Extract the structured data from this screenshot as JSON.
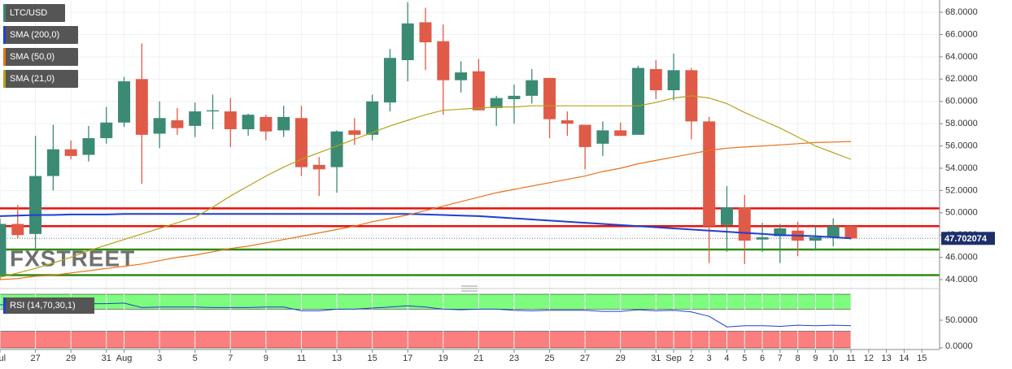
{
  "chart_data": [
    {
      "type": "candlestick",
      "symbol": "LTC/USD",
      "up_color": "#3b8a74",
      "down_color": "#e05a48",
      "x": [
        0,
        1,
        2,
        3,
        4,
        5,
        6,
        7,
        8,
        9,
        10,
        11,
        12,
        13,
        14,
        15,
        16,
        17,
        18,
        19,
        20,
        21,
        22,
        23,
        24,
        25,
        26,
        27,
        28,
        29,
        30,
        31,
        32,
        33,
        34,
        35,
        36,
        37,
        38,
        39,
        40,
        41,
        42,
        43,
        44,
        45,
        46,
        47,
        48
      ],
      "open": [
        44.5,
        49.0,
        48.1,
        53.3,
        55.7,
        55.2,
        56.7,
        58.1,
        62.0,
        57.1,
        58.3,
        57.8,
        59.1,
        59.1,
        57.5,
        58.6,
        57.4,
        58.5,
        54.3,
        54.1,
        57.4,
        57.0,
        59.9,
        63.7,
        67.1,
        65.4,
        61.9,
        62.7,
        59.4,
        60.2,
        60.5,
        62.1,
        58.3,
        57.9,
        56.2,
        57.4,
        57.0,
        62.9,
        61.0,
        62.8,
        58.2,
        48.9,
        50.5,
        47.6,
        47.9,
        48.4,
        47.5,
        47.8,
        48.8
      ],
      "high": [
        49.5,
        50.7,
        56.9,
        57.9,
        56.5,
        57.8,
        59.5,
        62.2,
        65.2,
        60.0,
        59.4,
        59.9,
        60.6,
        60.3,
        58.9,
        58.8,
        59.6,
        59.6,
        55.0,
        57.4,
        58.5,
        60.6,
        64.7,
        68.9,
        68.4,
        66.9,
        63.6,
        63.8,
        60.5,
        61.5,
        62.9,
        62.1,
        59.1,
        57.8,
        58.2,
        58.1,
        63.2,
        63.7,
        64.3,
        63.0,
        58.6,
        52.4,
        51.6,
        49.1,
        49.0,
        49.2,
        48.8,
        49.5,
        48.9
      ],
      "low": [
        44.0,
        47.7,
        46.8,
        52.0,
        54.8,
        54.6,
        56.2,
        57.7,
        52.6,
        55.8,
        57.0,
        56.8,
        57.5,
        55.9,
        56.9,
        56.5,
        56.8,
        53.3,
        51.5,
        51.8,
        56.1,
        56.5,
        59.1,
        61.8,
        62.8,
        58.8,
        60.8,
        59.2,
        57.8,
        58.0,
        59.8,
        56.7,
        56.9,
        53.9,
        55.1,
        57.0,
        57.0,
        60.2,
        60.1,
        56.6,
        45.5,
        46.5,
        45.4,
        46.5,
        45.5,
        46.1,
        46.6,
        47.0,
        47.6
      ],
      "close": [
        49.0,
        48.0,
        53.3,
        55.7,
        55.1,
        56.7,
        58.1,
        61.8,
        57.0,
        58.5,
        57.6,
        59.1,
        59.2,
        57.5,
        58.8,
        57.3,
        58.6,
        54.1,
        53.9,
        57.3,
        57.0,
        60.0,
        63.9,
        67.0,
        65.3,
        61.9,
        62.6,
        59.2,
        60.3,
        60.5,
        61.9,
        58.4,
        58.0,
        55.9,
        57.4,
        56.9,
        63.0,
        61.0,
        62.8,
        58.2,
        48.8,
        50.5,
        47.5,
        47.8,
        48.6,
        47.5,
        47.8,
        48.8,
        47.7
      ],
      "series": [
        {
          "name": "SMA (200,0)",
          "color": "#1f3fd1",
          "values": [
            49.7,
            49.75,
            49.8,
            49.8,
            49.85,
            49.85,
            49.85,
            49.9,
            49.9,
            49.9,
            49.9,
            49.9,
            49.9,
            49.9,
            49.9,
            49.9,
            49.9,
            49.9,
            49.9,
            49.9,
            49.9,
            49.9,
            49.9,
            49.9,
            49.85,
            49.8,
            49.75,
            49.7,
            49.6,
            49.5,
            49.4,
            49.3,
            49.2,
            49.1,
            49.0,
            48.9,
            48.8,
            48.7,
            48.6,
            48.5,
            48.4,
            48.3,
            48.2,
            48.1,
            48.0,
            47.95,
            47.9,
            47.8,
            47.7
          ]
        },
        {
          "name": "SMA (50,0)",
          "color": "#e8731a",
          "values": [
            44.0,
            44.1,
            44.3,
            44.4,
            44.6,
            44.8,
            45.0,
            45.2,
            45.4,
            45.7,
            46.0,
            46.2,
            46.5,
            46.8,
            47.0,
            47.3,
            47.6,
            47.9,
            48.2,
            48.5,
            48.8,
            49.2,
            49.5,
            49.8,
            50.2,
            50.6,
            51.0,
            51.4,
            51.8,
            52.1,
            52.4,
            52.7,
            53.0,
            53.3,
            53.7,
            54.0,
            54.4,
            54.7,
            55.0,
            55.3,
            55.6,
            55.8,
            55.9,
            56.0,
            56.1,
            56.2,
            56.3,
            56.35,
            56.4
          ]
        },
        {
          "name": "SMA (21,0)",
          "color": "#b5a21a",
          "values": [
            44.2,
            44.6,
            45.0,
            45.5,
            46.0,
            46.6,
            47.1,
            47.6,
            48.1,
            48.6,
            49.1,
            49.6,
            50.5,
            51.5,
            52.4,
            53.3,
            54.1,
            54.8,
            55.4,
            56.0,
            56.6,
            57.2,
            57.8,
            58.3,
            58.8,
            59.2,
            59.3,
            59.4,
            59.5,
            59.5,
            59.6,
            59.6,
            59.6,
            59.6,
            59.6,
            59.6,
            59.6,
            59.9,
            60.3,
            60.5,
            60.3,
            59.8,
            59.0,
            58.3,
            57.6,
            56.8,
            56.0,
            55.4,
            54.8
          ]
        }
      ],
      "levels": [
        {
          "value": 50.4,
          "color": "#e8120c"
        },
        {
          "value": 48.8,
          "color": "#e8120c"
        },
        {
          "value": 46.7,
          "color": "#2f8a12"
        },
        {
          "value": 44.4,
          "color": "#2f8a12"
        }
      ],
      "last_price": 47.702074,
      "watermark": "FXSTREET",
      "xlim": [
        0,
        53
      ],
      "ylim": [
        43.2,
        69.1
      ],
      "yticks": [
        {
          "value": 44,
          "label": "44.0000"
        },
        {
          "value": 46,
          "label": "46.0000"
        },
        {
          "value": 48,
          "label": "48.0000"
        },
        {
          "value": 50,
          "label": "50.0000"
        },
        {
          "value": 52,
          "label": "52.0000"
        },
        {
          "value": 54,
          "label": "54.0000"
        },
        {
          "value": 56,
          "label": "56.0000"
        },
        {
          "value": 58,
          "label": "58.0000"
        },
        {
          "value": 60,
          "label": "60.0000"
        },
        {
          "value": 62,
          "label": "62.0000"
        },
        {
          "value": 64,
          "label": "64.0000"
        },
        {
          "value": 66,
          "label": "66.0000"
        },
        {
          "value": 68,
          "label": "68.0000"
        }
      ],
      "grid": true
    },
    {
      "type": "line",
      "x": [
        0,
        1,
        2,
        3,
        4,
        5,
        6,
        7,
        8,
        9,
        10,
        11,
        12,
        13,
        14,
        15,
        16,
        17,
        18,
        19,
        20,
        21,
        22,
        23,
        24,
        25,
        26,
        27,
        28,
        29,
        30,
        31,
        32,
        33,
        34,
        35,
        36,
        37,
        38,
        39,
        40,
        41,
        42,
        43,
        44,
        45,
        46,
        47,
        48
      ],
      "series": [
        {
          "name": "RSI (14,70,30,1)",
          "color": "#1f3fd1",
          "values": [
            78,
            79,
            80,
            80,
            80,
            80,
            80,
            81,
            73,
            74,
            74,
            74,
            73,
            73,
            73,
            74,
            74,
            67,
            67,
            70,
            70,
            72,
            74,
            76,
            74,
            70,
            69,
            70,
            70,
            68,
            67,
            68,
            68,
            68,
            66,
            66,
            69,
            67,
            68,
            65,
            57,
            38,
            40,
            40,
            39,
            41,
            40,
            41,
            40
          ]
        }
      ],
      "bands": [
        {
          "from": 70,
          "to": 100,
          "color": "#7dfc7d"
        },
        {
          "from": 0,
          "to": 30,
          "color": "#fc7f7f"
        }
      ],
      "xlim": [
        0,
        53
      ],
      "ylim": [
        0,
        100
      ],
      "yticks": [
        {
          "value": 0,
          "label": "0.0000"
        },
        {
          "value": 50,
          "label": "50.0000"
        }
      ],
      "xticks": [
        {
          "value": 0,
          "label": "Jul"
        },
        {
          "value": 2,
          "label": "27"
        },
        {
          "value": 4,
          "label": "29"
        },
        {
          "value": 6,
          "label": "31"
        },
        {
          "value": 7,
          "label": "Aug"
        },
        {
          "value": 9,
          "label": "3"
        },
        {
          "value": 11,
          "label": "5"
        },
        {
          "value": 13,
          "label": "7"
        },
        {
          "value": 15,
          "label": "9"
        },
        {
          "value": 17,
          "label": "11"
        },
        {
          "value": 19,
          "label": "13"
        },
        {
          "value": 21,
          "label": "15"
        },
        {
          "value": 23,
          "label": "17"
        },
        {
          "value": 25,
          "label": "19"
        },
        {
          "value": 27,
          "label": "21"
        },
        {
          "value": 29,
          "label": "23"
        },
        {
          "value": 31,
          "label": "25"
        },
        {
          "value": 33,
          "label": "27"
        },
        {
          "value": 35,
          "label": "29"
        },
        {
          "value": 37,
          "label": "31"
        },
        {
          "value": 38,
          "label": "Sep"
        },
        {
          "value": 39,
          "label": "2"
        },
        {
          "value": 40,
          "label": "3"
        },
        {
          "value": 41,
          "label": "4"
        },
        {
          "value": 42,
          "label": "5"
        },
        {
          "value": 43,
          "label": "6"
        },
        {
          "value": 44,
          "label": "7"
        },
        {
          "value": 45,
          "label": "8"
        },
        {
          "value": 46,
          "label": "9"
        },
        {
          "value": 47,
          "label": "10"
        },
        {
          "value": 48,
          "label": "11"
        },
        {
          "value": 49,
          "label": "12"
        },
        {
          "value": 50,
          "label": "13"
        },
        {
          "value": 51,
          "label": "14"
        },
        {
          "value": 52,
          "label": "15"
        }
      ]
    }
  ]
}
